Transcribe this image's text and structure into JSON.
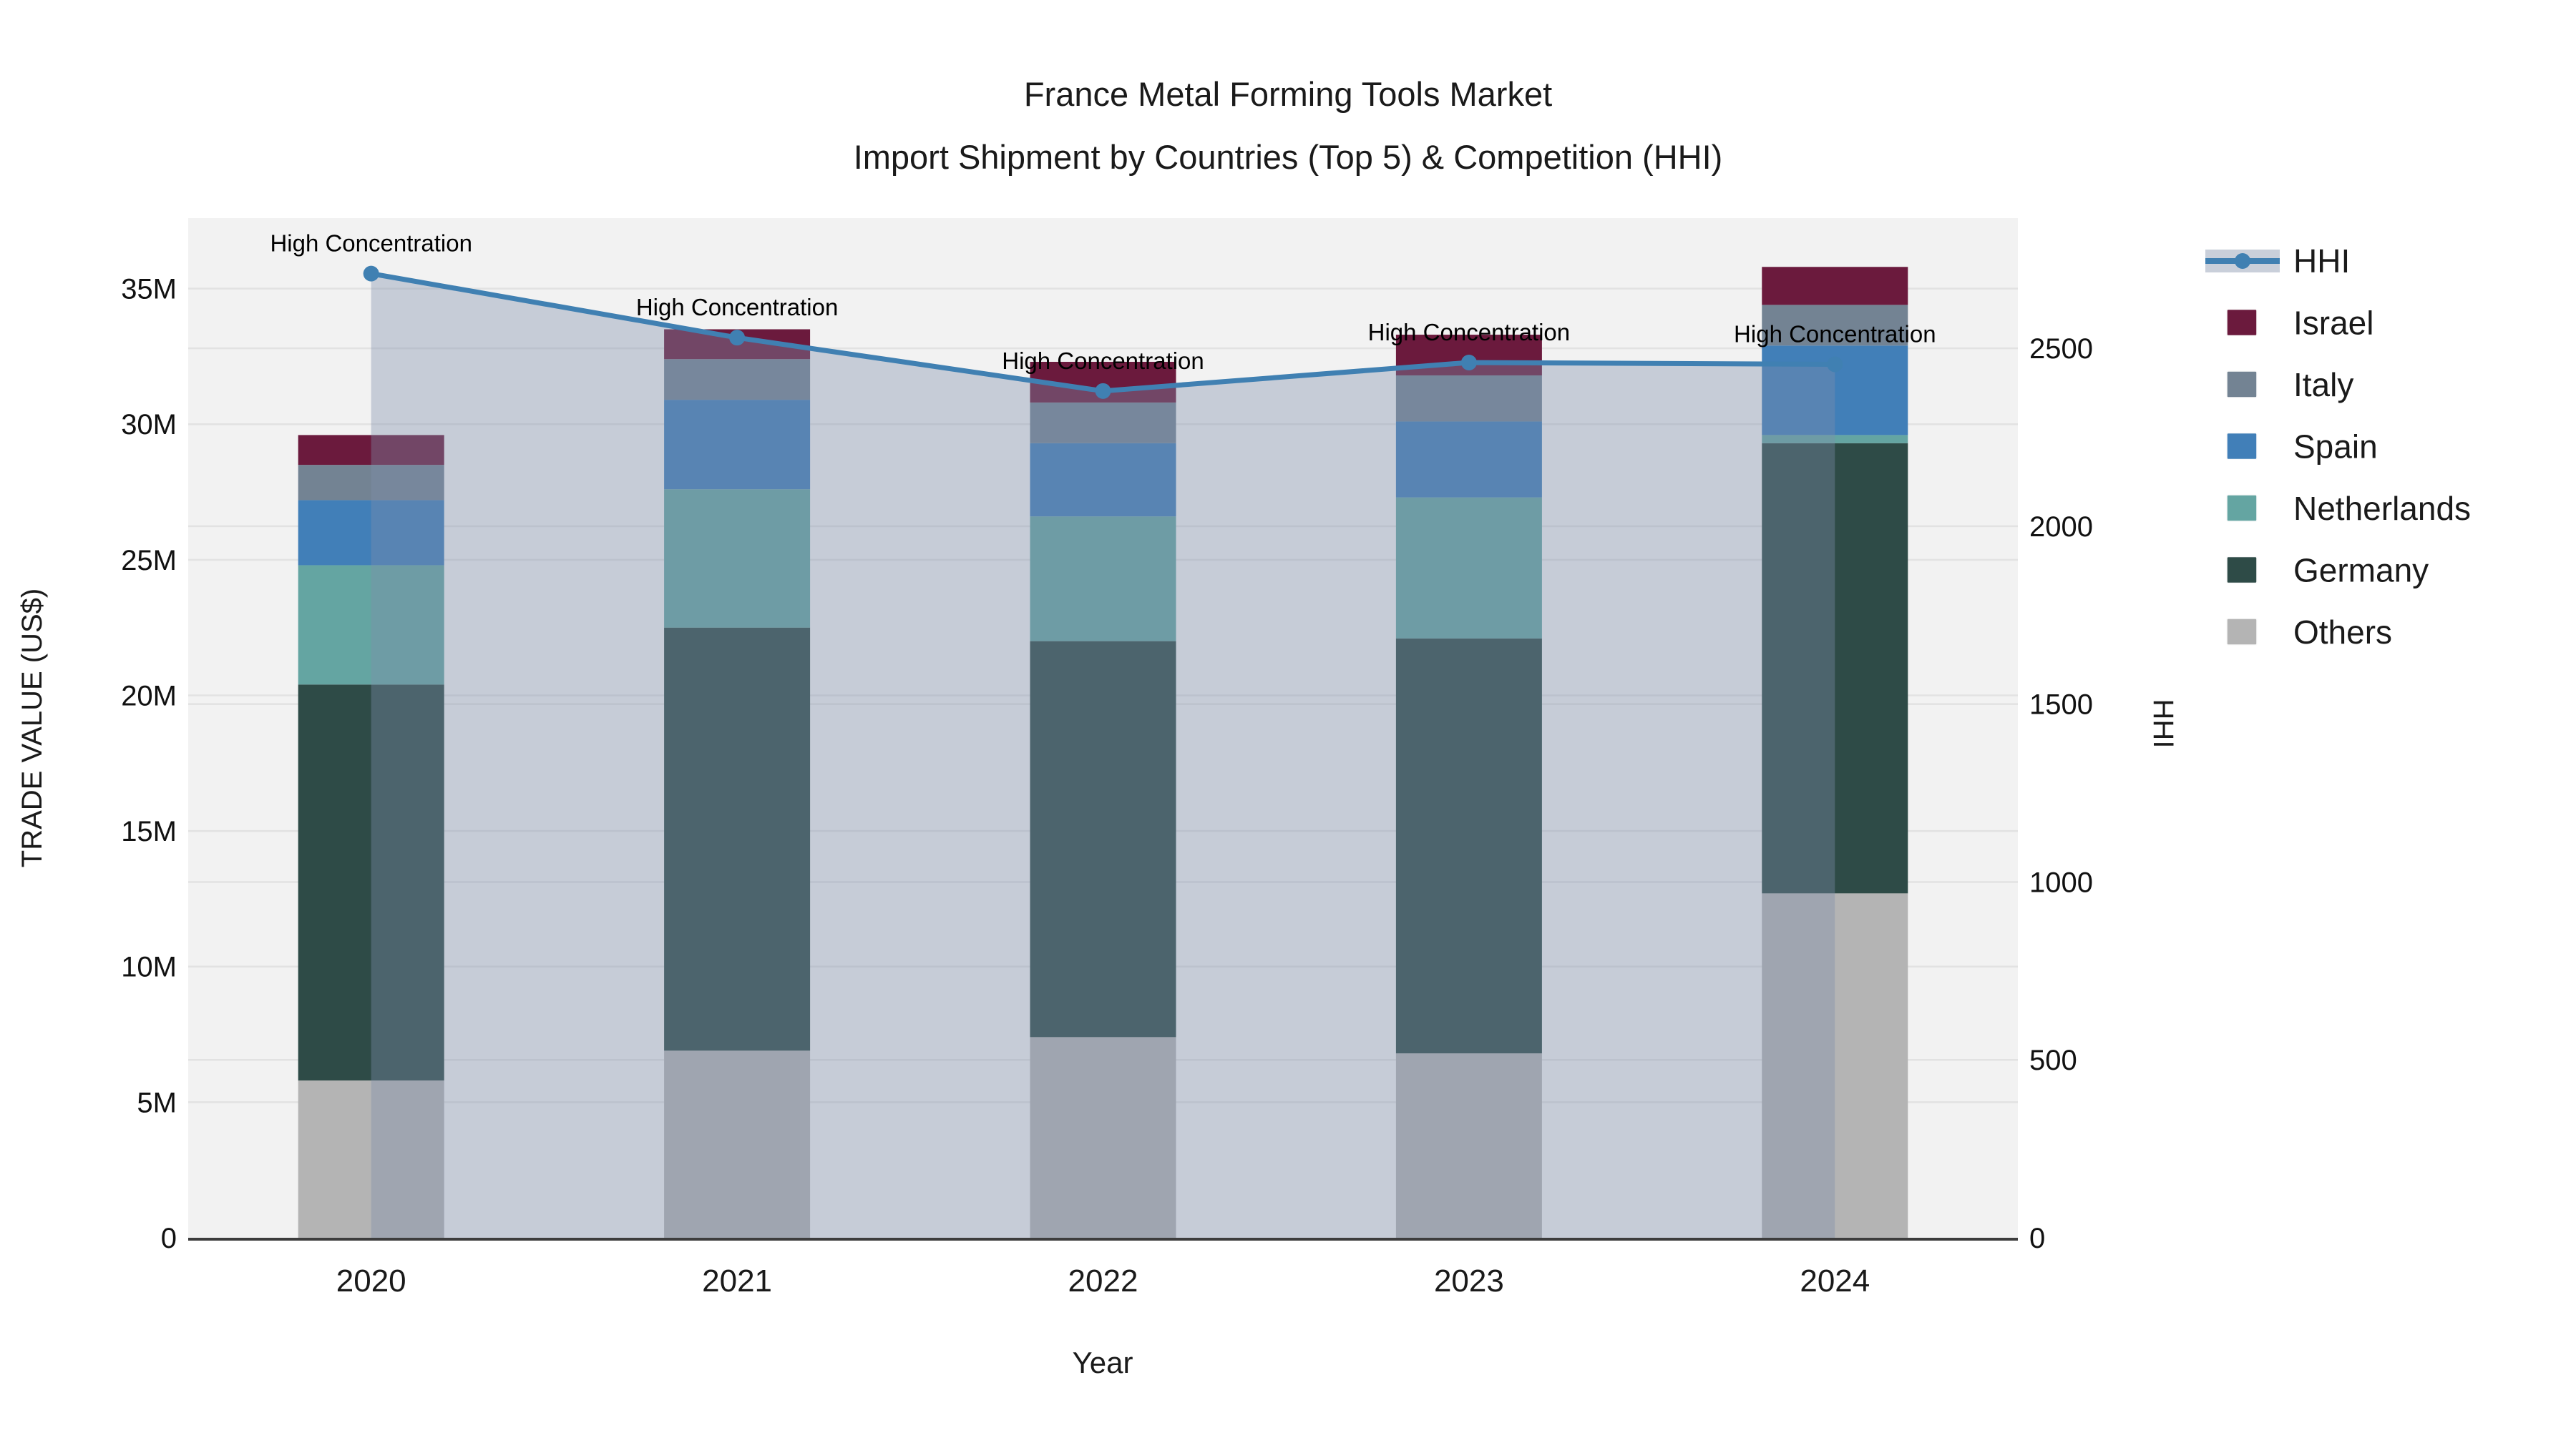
{
  "title": {
    "line1": "France Metal Forming Tools Market",
    "line2": "Import Shipment by Countries (Top 5) & Competition (HHI)"
  },
  "chart_data": {
    "type": "combo-stacked-bar-line",
    "categories": [
      "2020",
      "2021",
      "2022",
      "2023",
      "2024"
    ],
    "xlabel": "Year",
    "y_left": {
      "label": "TRADE VALUE (US$)",
      "lim": [
        0,
        37600000
      ],
      "ticks": [
        {
          "v": 0,
          "t": "0"
        },
        {
          "v": 5000000,
          "t": "5M"
        },
        {
          "v": 10000000,
          "t": "10M"
        },
        {
          "v": 15000000,
          "t": "15M"
        },
        {
          "v": 20000000,
          "t": "20M"
        },
        {
          "v": 25000000,
          "t": "25M"
        },
        {
          "v": 30000000,
          "t": "30M"
        },
        {
          "v": 35000000,
          "t": "35M"
        }
      ]
    },
    "y_right": {
      "label": "HHI",
      "lim": [
        0,
        2866
      ],
      "ticks": [
        {
          "v": 0,
          "t": "0"
        },
        {
          "v": 500,
          "t": "500"
        },
        {
          "v": 1000,
          "t": "1000"
        },
        {
          "v": 1500,
          "t": "1500"
        },
        {
          "v": 2000,
          "t": "2000"
        },
        {
          "v": 2500,
          "t": "2500"
        }
      ]
    },
    "bar_series": [
      {
        "name": "Others",
        "color": "#b4b4b4",
        "values": [
          5800000,
          6900000,
          7400000,
          6800000,
          12700000
        ]
      },
      {
        "name": "Germany",
        "color": "#2e4b47",
        "values": [
          14600000,
          15600000,
          14600000,
          15300000,
          16600000
        ]
      },
      {
        "name": "Netherlands",
        "color": "#64a5a2",
        "values": [
          4400000,
          5100000,
          4600000,
          5200000,
          300000
        ]
      },
      {
        "name": "Spain",
        "color": "#417fb8",
        "values": [
          2400000,
          3300000,
          2700000,
          2800000,
          3300000
        ]
      },
      {
        "name": "Italy",
        "color": "#738393",
        "values": [
          1300000,
          1500000,
          1500000,
          1700000,
          1500000
        ]
      },
      {
        "name": "Israel",
        "color": "#6b1a3d",
        "values": [
          1100000,
          1100000,
          1500000,
          1500000,
          1400000
        ]
      }
    ],
    "line_series": {
      "name": "HHI",
      "color": "#4080b2",
      "area_fill": "rgba(126,143,172,0.38)",
      "legend_band": "#c9cfda",
      "values": [
        2710,
        2530,
        2380,
        2460,
        2455
      ]
    },
    "annotations": [
      "High Concentration",
      "High Concentration",
      "High Concentration",
      "High Concentration",
      "High Concentration"
    ],
    "legend": {
      "order": [
        "HHI",
        "Israel",
        "Italy",
        "Spain",
        "Netherlands",
        "Germany",
        "Others"
      ]
    },
    "plot_bg": "#f2f2f2",
    "grid_color": "#e2e2e2",
    "axis_line_color": "#3d3d3d",
    "text_color": "#1a1a1a"
  }
}
